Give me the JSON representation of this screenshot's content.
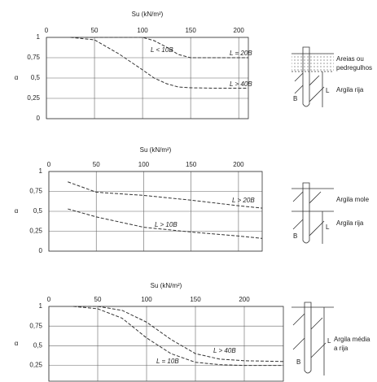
{
  "chart_data": [
    {
      "type": "line",
      "xlabel": "Su (kN/m²)",
      "ylabel": "α",
      "grid": true,
      "line_style": "dashed",
      "x": [
        25,
        50,
        75,
        100,
        112,
        125,
        137,
        150,
        175,
        210
      ],
      "series": [
        {
          "name": "L < 10B",
          "color": "#333333",
          "values": [
            1,
            1,
            1,
            1,
            0.96,
            0.88,
            0.79,
            0.75,
            0.75,
            0.75
          ]
        },
        {
          "name": "L > 40B",
          "color": "#333333",
          "values": [
            1,
            0.97,
            0.8,
            0.6,
            0.5,
            0.43,
            0.39,
            0.38,
            0.375,
            0.375
          ]
        }
      ],
      "annotations": [
        "L = 20B"
      ],
      "xlim": [
        0,
        210
      ],
      "xticks": [
        0,
        50,
        100,
        150,
        200
      ],
      "ylim": [
        0,
        1
      ],
      "yticks": [
        0,
        {
          "value": 0.25,
          "label": "0,25"
        },
        {
          "value": 0.5,
          "label": "0,5"
        },
        {
          "value": 0.75,
          "label": "0,75"
        },
        1
      ]
    },
    {
      "type": "line",
      "xlabel": "Su (kN/m²)",
      "ylabel": "α",
      "grid": true,
      "line_style": "dashed",
      "x": [
        20,
        50,
        100,
        150,
        200,
        225
      ],
      "series": [
        {
          "name": "L > 20B",
          "color": "#333333",
          "values": [
            0.87,
            0.74,
            0.7,
            0.64,
            0.57,
            0.54
          ]
        },
        {
          "name": "L > 10B",
          "color": "#333333",
          "values": [
            0.53,
            0.43,
            0.3,
            0.24,
            0.19,
            0.16
          ]
        }
      ],
      "xlim": [
        0,
        225
      ],
      "xticks": [
        0,
        50,
        100,
        150,
        200
      ],
      "ylim": [
        0,
        1
      ],
      "yticks": [
        0,
        {
          "value": 0.25,
          "label": "0,25"
        },
        {
          "value": 0.5,
          "label": "0,5"
        },
        {
          "value": 0.75,
          "label": "0,75"
        },
        1
      ]
    },
    {
      "type": "line",
      "xlabel": "Su (kN/m²)",
      "ylabel": "α",
      "grid": true,
      "line_style": "dashed",
      "x": [
        25,
        50,
        75,
        100,
        125,
        150,
        175,
        200,
        240
      ],
      "series": [
        {
          "name": "L > 40B",
          "color": "#333333",
          "values": [
            1,
            1,
            0.95,
            0.8,
            0.58,
            0.4,
            0.33,
            0.31,
            0.3
          ]
        },
        {
          "name": "L = 10B",
          "color": "#333333",
          "values": [
            1,
            0.97,
            0.85,
            0.6,
            0.4,
            0.29,
            0.26,
            0.25,
            0.25
          ]
        }
      ],
      "xlim": [
        0,
        240
      ],
      "xticks": [
        0,
        50,
        100,
        150,
        200
      ],
      "ylim": [
        0.05,
        1
      ],
      "yticks": [
        {
          "value": 0.25,
          "label": "0,25"
        },
        {
          "value": 0.5,
          "label": "0,5"
        },
        {
          "value": 0.75,
          "label": "0,75"
        },
        1
      ]
    }
  ],
  "diagrams": [
    {
      "labels": [
        "Areias ou",
        "pedregulhos",
        "Argila rija",
        "L",
        "B"
      ]
    },
    {
      "labels": [
        "Argila mole",
        "Argila rija",
        "L",
        "B"
      ]
    },
    {
      "labels": [
        "Argila média",
        "a rija",
        "L",
        "B"
      ]
    }
  ]
}
